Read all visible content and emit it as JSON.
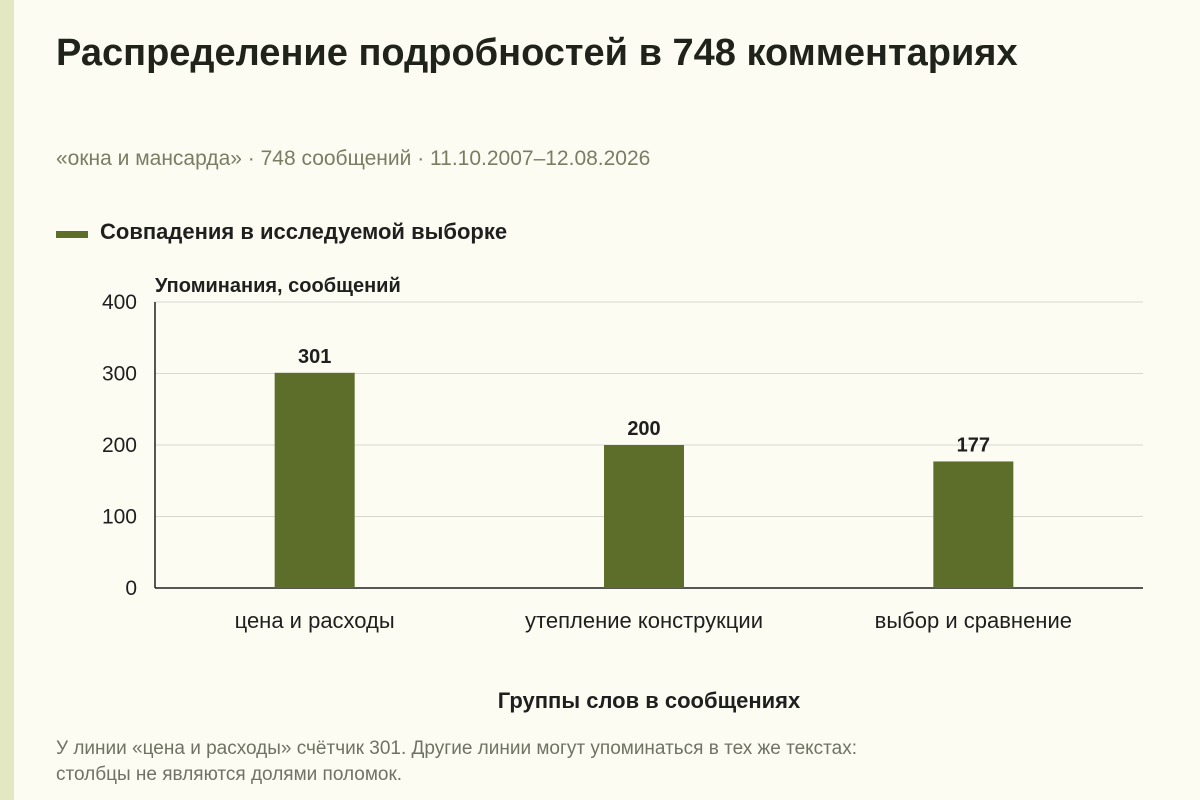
{
  "title": "Распределение подробностей в 748 комментариях",
  "subtitle": "«окна и мансарда» · 748 сообщений · 11.10.2007–12.08.2026",
  "legend": {
    "label": "Совпадения в исследуемой выборке",
    "color": "#5c6e2a"
  },
  "colors": {
    "bar": "#5c6e2a",
    "background": "#fdfcf3",
    "accent_stripe": "#e3e8c2",
    "grid": "#d8d8d0",
    "axis": "#1f1f1f"
  },
  "chart_data": {
    "type": "bar",
    "title": "Распределение подробностей в 748 комментариях",
    "ylabel": "Упоминания, сообщений",
    "xlabel": "Группы слов в сообщениях",
    "categories": [
      "цена и расходы",
      "утепление конструкции",
      "выбор и сравнение"
    ],
    "series": [
      {
        "name": "Совпадения в исследуемой выборке",
        "values": [
          301,
          200,
          177
        ]
      }
    ],
    "ylim": [
      0,
      400
    ],
    "yticks": [
      0,
      100,
      200,
      300,
      400
    ],
    "grid": true,
    "legend_position": "top-left",
    "data_labels": true
  },
  "footnote": {
    "line1": "У линии «цена и расходы» счётчик 301. Другие линии могут упоминаться в тех же текстах:",
    "line2": "столбцы не являются долями поломок."
  }
}
